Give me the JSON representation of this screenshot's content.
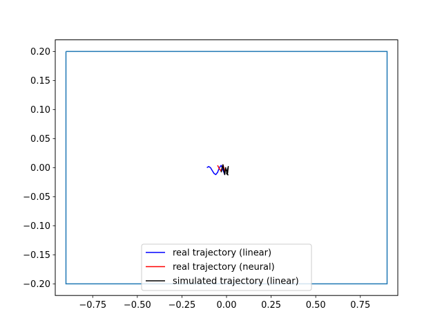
{
  "chart_data": {
    "type": "line",
    "title": "",
    "xlabel": "",
    "ylabel": "",
    "xlim": [
      -0.96,
      0.96
    ],
    "ylim": [
      -0.22,
      0.22
    ],
    "xticks": [
      -0.75,
      -0.5,
      -0.25,
      0.0,
      0.25,
      0.5,
      0.75
    ],
    "xtick_labels": [
      "−0.75",
      "−0.50",
      "−0.25",
      "0.00",
      "0.25",
      "0.50",
      "0.75"
    ],
    "yticks": [
      0.2,
      0.15,
      0.1,
      0.05,
      0.0,
      -0.05,
      -0.1,
      -0.15,
      -0.2
    ],
    "ytick_labels": [
      "0.20",
      "0.15",
      "0.10",
      "0.05",
      "0.00",
      "−0.05",
      "−0.10",
      "−0.15",
      "−0.20"
    ],
    "grid": false,
    "legend_position": "lower center",
    "boundary": {
      "color": "#1f77b4",
      "x": [
        -0.9,
        0.9,
        0.9,
        -0.9,
        -0.9
      ],
      "y": [
        0.2,
        0.2,
        -0.2,
        -0.2,
        0.2
      ]
    },
    "series": [
      {
        "name": "real trajectory (linear)",
        "color": "#0000ff",
        "x": [
          -0.11,
          -0.1,
          -0.09,
          -0.08,
          -0.07,
          -0.06,
          -0.05,
          -0.04,
          -0.03,
          -0.02,
          -0.01
        ],
        "y": [
          0.0,
          0.002,
          0.0,
          -0.005,
          -0.01,
          -0.012,
          -0.008,
          0.0,
          0.004,
          -0.004,
          -0.012
        ]
      },
      {
        "name": "real trajectory (neural)",
        "color": "#ff0000",
        "x": [
          -0.05,
          -0.04,
          -0.03,
          -0.02,
          -0.015,
          -0.01
        ],
        "y": [
          0.004,
          -0.002,
          -0.006,
          0.005,
          0.0,
          -0.008
        ]
      },
      {
        "name": "simulated trajectory (linear)",
        "color": "#000000",
        "x": [
          -0.03,
          -0.02,
          -0.015,
          -0.01,
          -0.005,
          0.0,
          0.005,
          0.01,
          0.0,
          0.01
        ],
        "y": [
          -0.008,
          0.005,
          -0.005,
          -0.012,
          0.0,
          -0.006,
          -0.012,
          0.002,
          -0.01,
          -0.013
        ]
      }
    ]
  }
}
